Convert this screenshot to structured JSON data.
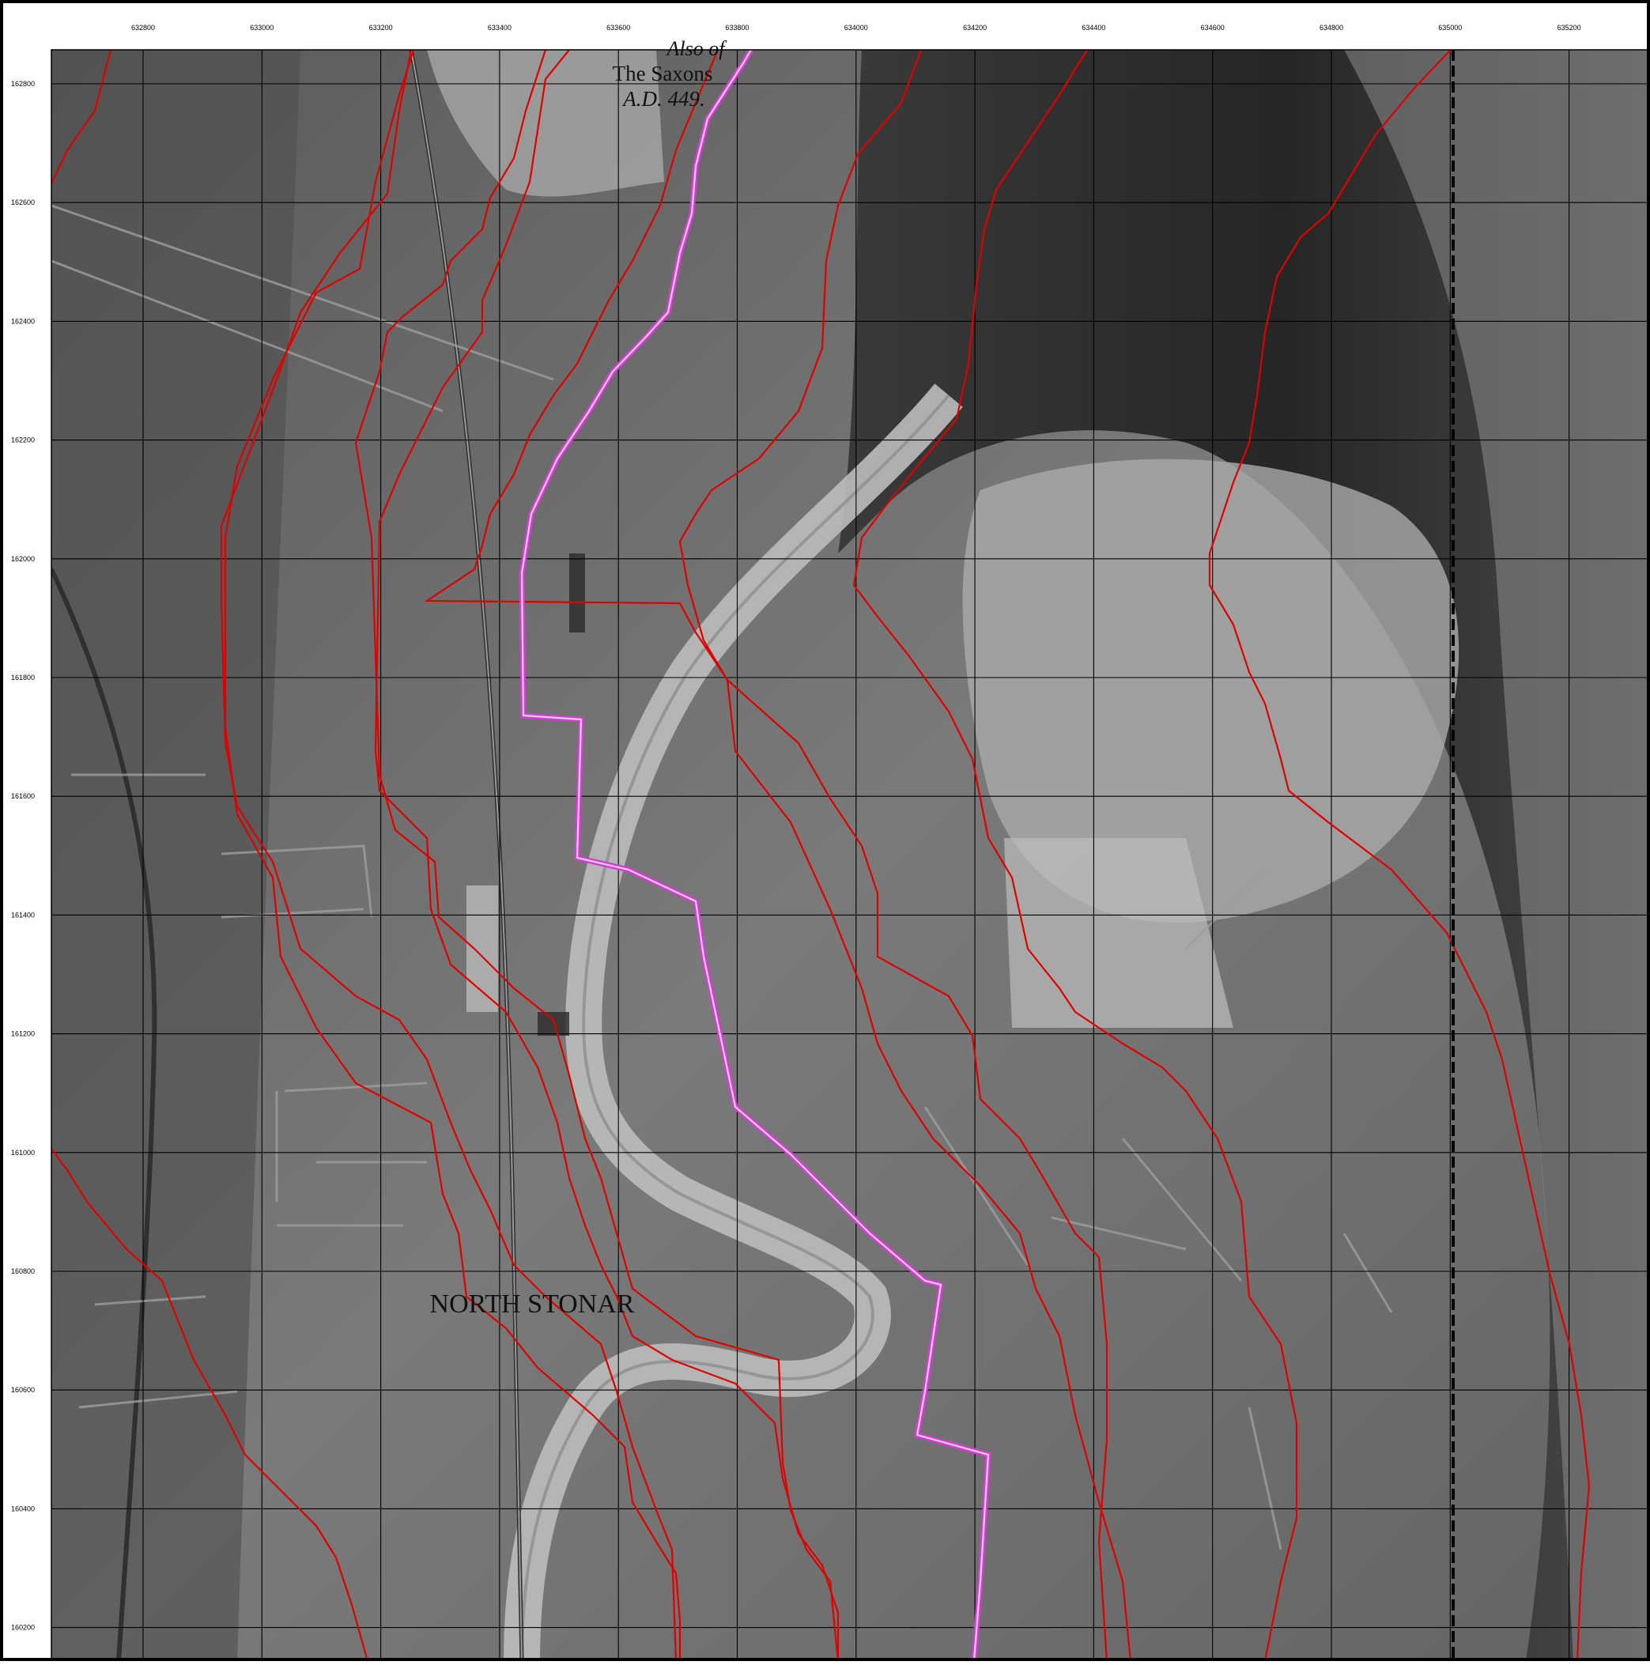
{
  "map": {
    "place_label": "NORTH STONAR",
    "caption_lines": [
      "Also of",
      "The Saxons",
      "A.D. 449."
    ],
    "x_ticks": [
      "632800",
      "633000",
      "633200",
      "633400",
      "633600",
      "633800",
      "634000",
      "634200",
      "634400",
      "634600",
      "634800",
      "635000",
      "635200"
    ],
    "y_ticks": [
      "162800",
      "162600",
      "162400",
      "162200",
      "162000",
      "161800",
      "161600",
      "161400",
      "161200",
      "161000",
      "160800",
      "160600",
      "160400",
      "160200"
    ],
    "colors": {
      "frame": "#000000",
      "grid": "#000000",
      "contour_lines": "#e00000",
      "route_line": "#d040d0",
      "dashed_boundary": "#000000",
      "imagery_dark": "#202020",
      "imagery_mid": "#6a6a6a",
      "imagery_light": "#bdbdbd"
    },
    "imagery": "greyscale aerial photograph",
    "features": [
      "grid-lines",
      "red-contour-lines",
      "magenta-route-line",
      "dashed-boundary-line"
    ]
  }
}
